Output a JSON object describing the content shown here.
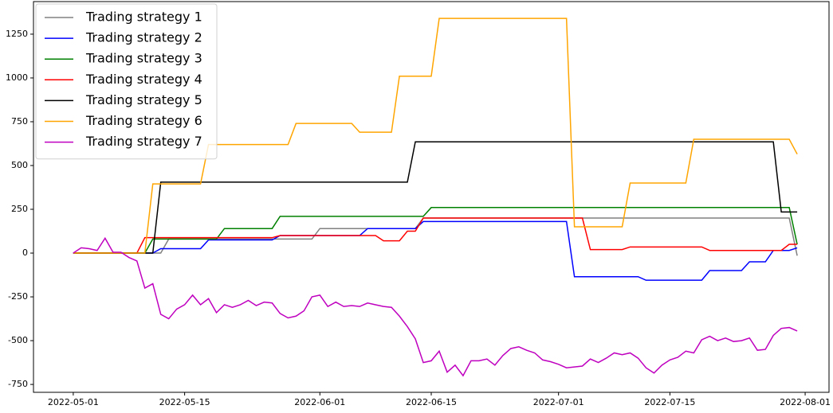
{
  "chart_data": {
    "type": "line",
    "x": [
      "2022-05-01",
      "2022-05-02",
      "2022-05-03",
      "2022-05-04",
      "2022-05-05",
      "2022-05-06",
      "2022-05-07",
      "2022-05-08",
      "2022-05-09",
      "2022-05-10",
      "2022-05-11",
      "2022-05-12",
      "2022-05-13",
      "2022-05-14",
      "2022-05-15",
      "2022-05-16",
      "2022-05-17",
      "2022-05-18",
      "2022-05-19",
      "2022-05-20",
      "2022-05-21",
      "2022-05-22",
      "2022-05-23",
      "2022-05-24",
      "2022-05-25",
      "2022-05-26",
      "2022-05-27",
      "2022-05-28",
      "2022-05-29",
      "2022-05-30",
      "2022-05-31",
      "2022-06-01",
      "2022-06-02",
      "2022-06-03",
      "2022-06-04",
      "2022-06-05",
      "2022-06-06",
      "2022-06-07",
      "2022-06-08",
      "2022-06-09",
      "2022-06-10",
      "2022-06-11",
      "2022-06-12",
      "2022-06-13",
      "2022-06-14",
      "2022-06-15",
      "2022-06-16",
      "2022-06-17",
      "2022-06-18",
      "2022-06-19",
      "2022-06-20",
      "2022-06-21",
      "2022-06-22",
      "2022-06-23",
      "2022-06-24",
      "2022-06-25",
      "2022-06-26",
      "2022-06-27",
      "2022-06-28",
      "2022-06-29",
      "2022-06-30",
      "2022-07-01",
      "2022-07-02",
      "2022-07-03",
      "2022-07-04",
      "2022-07-05",
      "2022-07-06",
      "2022-07-07",
      "2022-07-08",
      "2022-07-09",
      "2022-07-10",
      "2022-07-11",
      "2022-07-12",
      "2022-07-13",
      "2022-07-14",
      "2022-07-15",
      "2022-07-16",
      "2022-07-17",
      "2022-07-18",
      "2022-07-19",
      "2022-07-20",
      "2022-07-21",
      "2022-07-22",
      "2022-07-23",
      "2022-07-24",
      "2022-07-25",
      "2022-07-26",
      "2022-07-27",
      "2022-07-28",
      "2022-07-29",
      "2022-07-30",
      "2022-07-31"
    ],
    "series": [
      {
        "name": "Trading strategy 1",
        "color": "#808080",
        "values": [
          0,
          0,
          0,
          0,
          0,
          0,
          0,
          0,
          0,
          0,
          0,
          0,
          80,
          80,
          80,
          80,
          80,
          80,
          80,
          80,
          80,
          80,
          80,
          80,
          80,
          80,
          80,
          80,
          80,
          80,
          80,
          140,
          140,
          140,
          140,
          140,
          140,
          140,
          140,
          140,
          140,
          140,
          140,
          140,
          200,
          200,
          200,
          200,
          200,
          200,
          200,
          200,
          200,
          200,
          200,
          200,
          200,
          200,
          200,
          200,
          200,
          200,
          200,
          200,
          200,
          200,
          200,
          200,
          200,
          200,
          200,
          200,
          200,
          200,
          200,
          200,
          200,
          200,
          200,
          200,
          200,
          200,
          200,
          200,
          200,
          200,
          200,
          200,
          200,
          200,
          200,
          -15
        ]
      },
      {
        "name": "Trading strategy 2",
        "color": "#0000ff",
        "values": [
          0,
          0,
          0,
          0,
          0,
          0,
          0,
          0,
          0,
          0,
          0,
          25,
          25,
          25,
          25,
          25,
          25,
          75,
          75,
          75,
          75,
          75,
          75,
          75,
          75,
          75,
          100,
          100,
          100,
          100,
          100,
          100,
          100,
          100,
          100,
          100,
          100,
          140,
          140,
          140,
          140,
          140,
          140,
          140,
          180,
          180,
          180,
          180,
          180,
          180,
          180,
          180,
          180,
          180,
          180,
          180,
          180,
          180,
          180,
          180,
          180,
          180,
          180,
          -135,
          -135,
          -135,
          -135,
          -135,
          -135,
          -135,
          -135,
          -135,
          -155,
          -155,
          -155,
          -155,
          -155,
          -155,
          -155,
          -155,
          -100,
          -100,
          -100,
          -100,
          -100,
          -50,
          -50,
          -50,
          15,
          15,
          15,
          30
        ]
      },
      {
        "name": "Trading strategy 3",
        "color": "#008000",
        "values": [
          0,
          0,
          0,
          0,
          0,
          0,
          0,
          0,
          0,
          0,
          80,
          80,
          80,
          80,
          80,
          80,
          80,
          80,
          80,
          140,
          140,
          140,
          140,
          140,
          140,
          140,
          210,
          210,
          210,
          210,
          210,
          210,
          210,
          210,
          210,
          210,
          210,
          210,
          210,
          210,
          210,
          210,
          210,
          210,
          210,
          260,
          260,
          260,
          260,
          260,
          260,
          260,
          260,
          260,
          260,
          260,
          260,
          260,
          260,
          260,
          260,
          260,
          260,
          260,
          260,
          260,
          260,
          260,
          260,
          260,
          260,
          260,
          260,
          260,
          260,
          260,
          260,
          260,
          260,
          260,
          260,
          260,
          260,
          260,
          260,
          260,
          260,
          260,
          260,
          260,
          260,
          50
        ]
      },
      {
        "name": "Trading strategy 4",
        "color": "#ff0000",
        "values": [
          0,
          0,
          0,
          0,
          0,
          0,
          0,
          0,
          0,
          88,
          88,
          88,
          88,
          88,
          88,
          88,
          88,
          88,
          88,
          88,
          88,
          88,
          88,
          88,
          88,
          88,
          100,
          100,
          100,
          100,
          100,
          100,
          100,
          100,
          100,
          100,
          100,
          100,
          100,
          70,
          70,
          70,
          125,
          125,
          200,
          200,
          200,
          200,
          200,
          200,
          200,
          200,
          200,
          200,
          200,
          200,
          200,
          200,
          200,
          200,
          200,
          200,
          200,
          200,
          200,
          20,
          20,
          20,
          20,
          20,
          35,
          35,
          35,
          35,
          35,
          35,
          35,
          35,
          35,
          35,
          15,
          15,
          15,
          15,
          15,
          15,
          15,
          15,
          15,
          15,
          50,
          50
        ]
      },
      {
        "name": "Trading strategy 5",
        "color": "#000000",
        "values": [
          0,
          0,
          0,
          0,
          0,
          0,
          0,
          0,
          0,
          0,
          0,
          405,
          405,
          405,
          405,
          405,
          405,
          405,
          405,
          405,
          405,
          405,
          405,
          405,
          405,
          405,
          405,
          405,
          405,
          405,
          405,
          405,
          405,
          405,
          405,
          405,
          405,
          405,
          405,
          405,
          405,
          405,
          405,
          635,
          635,
          635,
          635,
          635,
          635,
          635,
          635,
          635,
          635,
          635,
          635,
          635,
          635,
          635,
          635,
          635,
          635,
          635,
          635,
          635,
          635,
          635,
          635,
          635,
          635,
          635,
          635,
          635,
          635,
          635,
          635,
          635,
          635,
          635,
          635,
          635,
          635,
          635,
          635,
          635,
          635,
          635,
          635,
          635,
          635,
          235,
          235,
          235
        ]
      },
      {
        "name": "Trading strategy 6",
        "color": "#ffa500",
        "values": [
          0,
          0,
          0,
          0,
          0,
          0,
          0,
          0,
          0,
          0,
          395,
          395,
          395,
          395,
          395,
          395,
          395,
          620,
          620,
          620,
          620,
          620,
          620,
          620,
          620,
          620,
          620,
          620,
          740,
          740,
          740,
          740,
          740,
          740,
          740,
          740,
          690,
          690,
          690,
          690,
          690,
          1010,
          1010,
          1010,
          1010,
          1010,
          1340,
          1340,
          1340,
          1340,
          1340,
          1340,
          1340,
          1340,
          1340,
          1340,
          1340,
          1340,
          1340,
          1340,
          1340,
          1340,
          1340,
          150,
          150,
          150,
          150,
          150,
          150,
          150,
          400,
          400,
          400,
          400,
          400,
          400,
          400,
          400,
          650,
          650,
          650,
          650,
          650,
          650,
          650,
          650,
          650,
          650,
          650,
          650,
          650,
          565
        ]
      },
      {
        "name": "Trading strategy 7",
        "color": "#bf00bf",
        "values": [
          0,
          30,
          25,
          15,
          85,
          5,
          5,
          -25,
          -45,
          -200,
          -175,
          -350,
          -375,
          -320,
          -295,
          -240,
          -295,
          -260,
          -340,
          -295,
          -310,
          -295,
          -270,
          -300,
          -280,
          -285,
          -345,
          -370,
          -360,
          -330,
          -250,
          -240,
          -305,
          -280,
          -305,
          -300,
          -305,
          -285,
          -295,
          -305,
          -310,
          -360,
          -420,
          -490,
          -625,
          -615,
          -560,
          -680,
          -640,
          -700,
          -615,
          -615,
          -605,
          -640,
          -585,
          -545,
          -535,
          -555,
          -570,
          -610,
          -620,
          -635,
          -655,
          -650,
          -645,
          -605,
          -625,
          -600,
          -570,
          -580,
          -570,
          -600,
          -655,
          -685,
          -640,
          -610,
          -595,
          -560,
          -570,
          -495,
          -475,
          -500,
          -485,
          -505,
          -500,
          -485,
          -555,
          -550,
          -470,
          -430,
          -425,
          -445
        ]
      }
    ],
    "xlim": [
      "2022-04-26",
      "2022-08-04"
    ],
    "xticks": [
      "2022-05-01",
      "2022-05-15",
      "2022-06-01",
      "2022-06-15",
      "2022-07-01",
      "2022-07-15",
      "2022-08-01"
    ],
    "ylim": [
      -795,
      1436
    ],
    "yticks": [
      -750,
      -500,
      -250,
      0,
      250,
      500,
      750,
      1000,
      1250
    ],
    "legend": "upper left",
    "grid": false
  }
}
